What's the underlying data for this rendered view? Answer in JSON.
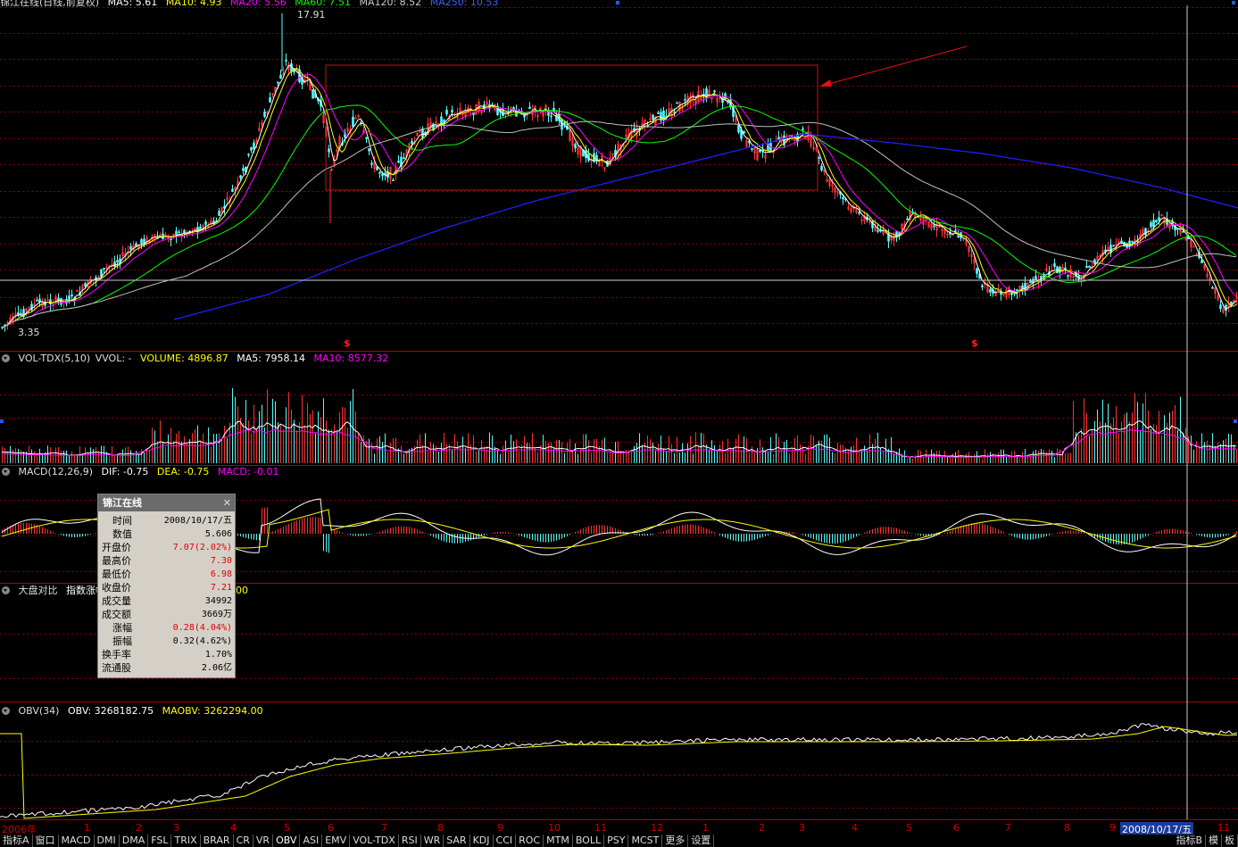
{
  "main_header": {
    "title": "锦江在线(日线,前复权)",
    "ma5": "MA5: 5.61",
    "ma10": "MA10: 4.93",
    "ma20": "MA20: 5.56",
    "ma60": "MA60: 7.51",
    "ma120": "MA120: 8.52",
    "ma250": "MA250: 10.53"
  },
  "price_labels": {
    "high": "17.91",
    "low": "3.35"
  },
  "signal_marks": [
    "$",
    "$"
  ],
  "vol_header": {
    "name": "VOL-TDX(5,10)",
    "vvol": "VVOL: -",
    "volume": "VOLUME: 4896.87",
    "ma5": "MA5: 7958.14",
    "ma10": "MA10: 8577.32"
  },
  "macd_header": {
    "name": "MACD(12,26,9)",
    "dif": "DIF: -0.75",
    "dea": "DEA: -0.75",
    "macd": "MACD: -0.01"
  },
  "dpdb_header": {
    "name": "大盘对比",
    "label": "指数涨幅",
    "suffix": "00"
  },
  "obv_header": {
    "name": "OBV(34)",
    "obv": "OBV: 3268182.75",
    "maobv": "MAOBV: 3262294.00"
  },
  "tooltip": {
    "title": "锦江在线",
    "rows": [
      {
        "k": "时间",
        "v": "2008/10/17/五",
        "c": "#000",
        "ind": true
      },
      {
        "k": "数值",
        "v": "5.606",
        "c": "#000",
        "ind": true
      },
      {
        "k": "开盘价",
        "v": "7.07(2.02%)",
        "c": "#e00000",
        "ind": false
      },
      {
        "k": "最高价",
        "v": "7.30",
        "c": "#e00000",
        "ind": false
      },
      {
        "k": "最低价",
        "v": "6.98",
        "c": "#e00000",
        "ind": false
      },
      {
        "k": "收盘价",
        "v": "7.21",
        "c": "#e00000",
        "ind": false
      },
      {
        "k": "成交量",
        "v": "34992",
        "c": "#000",
        "ind": false
      },
      {
        "k": "成交额",
        "v": "3669万",
        "c": "#000",
        "ind": false
      },
      {
        "k": "涨幅",
        "v": "0.28(4.04%)",
        "c": "#e00000",
        "ind": true
      },
      {
        "k": "振幅",
        "v": "0.32(4.62%)",
        "c": "#000",
        "ind": true
      },
      {
        "k": "换手率",
        "v": "1.70%",
        "c": "#000",
        "ind": false
      },
      {
        "k": "流通股",
        "v": "2.06亿",
        "c": "#000",
        "ind": false
      }
    ]
  },
  "xaxis": {
    "ticks": [
      "2006年",
      "1",
      "2",
      "3",
      "4",
      "5",
      "6",
      "7",
      "8",
      "9",
      "10",
      "11",
      "12",
      "1",
      "2",
      "3",
      "4",
      "5",
      "6",
      "7",
      "8",
      "9",
      "2008/10/17/五",
      "11"
    ]
  },
  "tabs": [
    "指标A",
    "窗口",
    "MACD",
    "DMI",
    "DMA",
    "FSL",
    "TRIX",
    "BRAR",
    "CR",
    "VR",
    "OBV",
    "ASI",
    "EMV",
    "VOL-TDX",
    "RSI",
    "WR",
    "SAR",
    "KDJ",
    "CCI",
    "ROC",
    "MTM",
    "BOLL",
    "PSY",
    "MCST",
    "更多",
    "设置"
  ],
  "tabs_right": [
    "指标B",
    "模",
    "板"
  ],
  "colors": {
    "up": "#ff3232",
    "down": "#54fcfc",
    "ma5": "#ffffff",
    "ma10": "#ffff00",
    "ma20": "#ff00ff",
    "ma60": "#00ff00",
    "ma120": "#c0c0c0",
    "ma250": "#2020ff",
    "grid": "#8b0000",
    "frame": "#b00000"
  }
}
